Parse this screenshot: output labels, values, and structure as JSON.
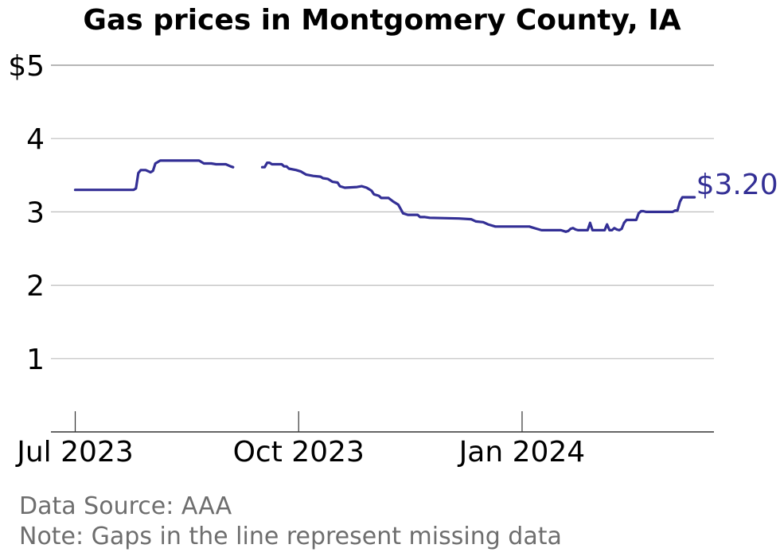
{
  "chart_data": {
    "type": "line",
    "title": "Gas prices in Montgomery County, IA",
    "xlabel": "",
    "ylabel": "",
    "y_ticks": [
      {
        "value": 5,
        "label": "$5"
      },
      {
        "value": 4,
        "label": "4"
      },
      {
        "value": 3,
        "label": "3"
      },
      {
        "value": 2,
        "label": "2"
      },
      {
        "value": 1,
        "label": "1"
      }
    ],
    "x_ticks": [
      {
        "date": "2023-07-01",
        "label": "Jul 2023"
      },
      {
        "date": "2023-10-01",
        "label": "Oct 2023"
      },
      {
        "date": "2024-01-01",
        "label": "Jan 2024"
      }
    ],
    "ylim": [
      0,
      5
    ],
    "xlim": [
      "2023-06-21",
      "2024-03-20"
    ],
    "grid": true,
    "line_color": "#332f95",
    "end_label": "$3.20",
    "series": [
      {
        "segments": [
          [
            [
              "2023-07-01",
              3.3
            ],
            [
              "2023-07-25",
              3.3
            ],
            [
              "2023-07-26",
              3.32
            ],
            [
              "2023-07-27",
              3.53
            ],
            [
              "2023-07-28",
              3.57
            ],
            [
              "2023-07-30",
              3.57
            ],
            [
              "2023-08-01",
              3.54
            ],
            [
              "2023-08-02",
              3.56
            ],
            [
              "2023-08-03",
              3.66
            ],
            [
              "2023-08-05",
              3.7
            ],
            [
              "2023-08-21",
              3.7
            ],
            [
              "2023-08-23",
              3.66
            ],
            [
              "2023-08-26",
              3.66
            ],
            [
              "2023-08-28",
              3.65
            ],
            [
              "2023-09-01",
              3.65
            ],
            [
              "2023-09-03",
              3.62
            ],
            [
              "2023-09-04",
              3.61
            ]
          ],
          [
            [
              "2023-09-16",
              3.61
            ],
            [
              "2023-09-17",
              3.61
            ],
            [
              "2023-09-18",
              3.67
            ],
            [
              "2023-09-19",
              3.67
            ],
            [
              "2023-09-20",
              3.65
            ],
            [
              "2023-09-24",
              3.65
            ],
            [
              "2023-09-25",
              3.62
            ],
            [
              "2023-09-26",
              3.62
            ],
            [
              "2023-09-27",
              3.59
            ],
            [
              "2023-09-30",
              3.57
            ],
            [
              "2023-10-02",
              3.55
            ],
            [
              "2023-10-04",
              3.51
            ],
            [
              "2023-10-07",
              3.49
            ],
            [
              "2023-10-10",
              3.48
            ],
            [
              "2023-10-11",
              3.46
            ],
            [
              "2023-10-13",
              3.45
            ],
            [
              "2023-10-15",
              3.41
            ],
            [
              "2023-10-17",
              3.4
            ],
            [
              "2023-10-18",
              3.35
            ],
            [
              "2023-10-20",
              3.33
            ],
            [
              "2023-10-25",
              3.34
            ],
            [
              "2023-10-27",
              3.35
            ],
            [
              "2023-10-29",
              3.33
            ],
            [
              "2023-10-31",
              3.29
            ],
            [
              "2023-11-01",
              3.24
            ],
            [
              "2023-11-03",
              3.22
            ],
            [
              "2023-11-04",
              3.19
            ],
            [
              "2023-11-07",
              3.19
            ],
            [
              "2023-11-09",
              3.14
            ],
            [
              "2023-11-11",
              3.1
            ],
            [
              "2023-11-12",
              3.04
            ],
            [
              "2023-11-13",
              2.98
            ],
            [
              "2023-11-15",
              2.96
            ],
            [
              "2023-11-19",
              2.96
            ],
            [
              "2023-11-20",
              2.93
            ],
            [
              "2023-11-22",
              2.93
            ],
            [
              "2023-11-24",
              2.92
            ],
            [
              "2023-12-06",
              2.91
            ],
            [
              "2023-12-11",
              2.9
            ],
            [
              "2023-12-13",
              2.87
            ],
            [
              "2023-12-16",
              2.86
            ],
            [
              "2023-12-18",
              2.83
            ],
            [
              "2023-12-21",
              2.8
            ],
            [
              "2024-01-04",
              2.8
            ],
            [
              "2024-01-05",
              2.79
            ],
            [
              "2024-01-07",
              2.77
            ],
            [
              "2024-01-09",
              2.75
            ],
            [
              "2024-01-17",
              2.75
            ],
            [
              "2024-01-19",
              2.73
            ],
            [
              "2024-01-20",
              2.74
            ],
            [
              "2024-01-21",
              2.77
            ],
            [
              "2024-01-22",
              2.78
            ],
            [
              "2024-01-23",
              2.76
            ],
            [
              "2024-01-24",
              2.75
            ],
            [
              "2024-01-28",
              2.75
            ],
            [
              "2024-01-29",
              2.85
            ],
            [
              "2024-01-30",
              2.75
            ],
            [
              "2024-02-04",
              2.75
            ],
            [
              "2024-02-05",
              2.83
            ],
            [
              "2024-02-06",
              2.75
            ],
            [
              "2024-02-07",
              2.75
            ],
            [
              "2024-02-08",
              2.78
            ],
            [
              "2024-02-09",
              2.76
            ],
            [
              "2024-02-10",
              2.75
            ],
            [
              "2024-02-11",
              2.77
            ],
            [
              "2024-02-12",
              2.85
            ],
            [
              "2024-02-13",
              2.89
            ],
            [
              "2024-02-17",
              2.89
            ],
            [
              "2024-02-18",
              2.98
            ],
            [
              "2024-02-19",
              3.01
            ],
            [
              "2024-02-20",
              3.01
            ],
            [
              "2024-02-21",
              3.0
            ],
            [
              "2024-03-03",
              3.0
            ],
            [
              "2024-03-04",
              3.02
            ],
            [
              "2024-03-05",
              3.02
            ],
            [
              "2024-03-06",
              3.14
            ],
            [
              "2024-03-07",
              3.2
            ],
            [
              "2024-03-12",
              3.2
            ]
          ]
        ]
      }
    ]
  },
  "notes": {
    "source": "Data Source: AAA",
    "gaps": "Note: Gaps in the line represent missing data"
  }
}
